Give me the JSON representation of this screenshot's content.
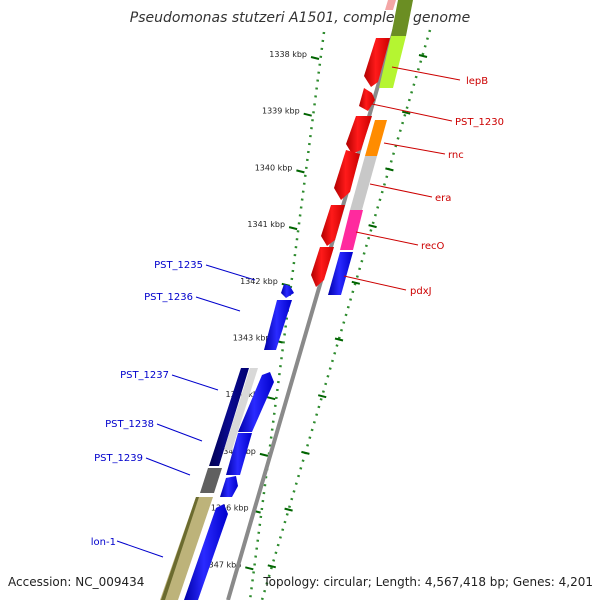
{
  "title": "Pseudomonas stutzeri A1501, complete genome",
  "footer": {
    "accession": "Accession: NC_009434",
    "summary": "Topology: circular; Length: 4,567,418 bp; Genes: 4,201"
  },
  "ruler": {
    "ticks": [
      "1338 kbp",
      "1339 kbp",
      "1340 kbp",
      "1341 kbp",
      "1342 kbp",
      "1343 kbp",
      "1344 kbp",
      "1345 kbp",
      "1346 kbp",
      "1347 kbp"
    ]
  },
  "forward_labels": [
    "lepB",
    "PST_1230",
    "rnc",
    "era",
    "recO",
    "pdxJ"
  ],
  "reverse_labels": [
    "PST_1235",
    "PST_1236",
    "PST_1237",
    "PST_1238",
    "PST_1239",
    "lon-1"
  ],
  "colors": {
    "forward_label": "#cc0000",
    "reverse_label": "#0000cc",
    "backbone": "#888888",
    "dots": "#228b22"
  }
}
